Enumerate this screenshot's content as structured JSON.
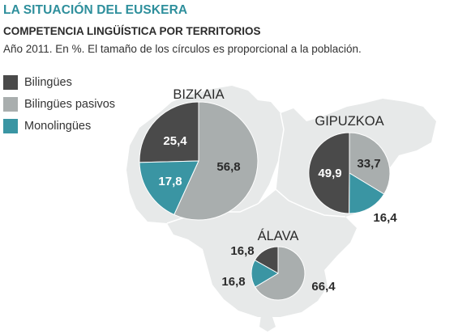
{
  "title": "LA SITUACIÓN DEL EUSKERA",
  "subtitle": "COMPETENCIA LINGÜÍSTICA POR TERRITORIOS",
  "note": "Año 2011. En %. El tamaño de los círculos es proporcional a la población.",
  "colors": {
    "bilingues": "#4a4a4a",
    "bilingues_pasivos": "#a9aeae",
    "monolingues": "#3a95a3",
    "map": "#e7e9e9",
    "title": "#2e8f9c"
  },
  "chart_data": {
    "type": "pie",
    "title": "COMPETENCIA LINGÜÍSTICA POR TERRITORIOS",
    "legend_position": "top-left",
    "legend": [
      {
        "key": "bilingues",
        "label": "Bilingües"
      },
      {
        "key": "bilingues_pasivos",
        "label": "Bilingües pasivos"
      },
      {
        "key": "monolingues",
        "label": "Monolingües"
      }
    ],
    "territories": [
      {
        "name": "BIZKAIA",
        "values": {
          "bilingues": 25.4,
          "bilingues_pasivos": 56.8,
          "monolingues": 17.8
        },
        "labels": {
          "bilingues": "25,4",
          "bilingues_pasivos": "56,8",
          "monolingues": "17,8"
        }
      },
      {
        "name": "GIPUZKOA",
        "values": {
          "bilingues": 49.9,
          "bilingues_pasivos": 33.7,
          "monolingues": 16.4
        },
        "labels": {
          "bilingues": "49,9",
          "bilingues_pasivos": "33,7",
          "monolingues": "16,4"
        }
      },
      {
        "name": "ÁLAVA",
        "values": {
          "bilingues": 16.8,
          "bilingues_pasivos": 66.4,
          "monolingues": 16.8
        },
        "labels": {
          "bilingues": "16,8",
          "bilingues_pasivos": "66,4",
          "monolingues": "16,8"
        }
      }
    ]
  }
}
